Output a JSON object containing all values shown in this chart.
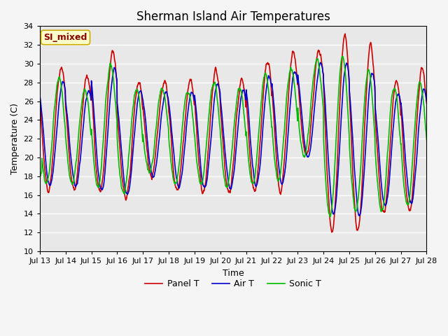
{
  "title": "Sherman Island Air Temperatures",
  "xlabel": "Time",
  "ylabel": "Temperature (C)",
  "ylim": [
    10,
    34
  ],
  "x_tick_labels": [
    "Jul 13",
    "Jul 14",
    "Jul 15",
    "Jul 16",
    "Jul 17",
    "Jul 18",
    "Jul 19",
    "Jul 20",
    "Jul 21",
    "Jul 22",
    "Jul 23",
    "Jul 24",
    "Jul 25",
    "Jul 26",
    "Jul 27",
    "Jul 28"
  ],
  "legend_entries": [
    "Panel T",
    "Air T",
    "Sonic T"
  ],
  "line_colors": [
    "#cc0000",
    "#0000cc",
    "#00bb00"
  ],
  "annotation_text": "SI_mixed",
  "annotation_bg": "#ffffcc",
  "annotation_border": "#ccaa00",
  "plot_bg": "#e8e8e8",
  "fig_bg": "#f5f5f5",
  "title_fontsize": 12,
  "label_fontsize": 9,
  "tick_fontsize": 8,
  "linewidth": 1.2
}
